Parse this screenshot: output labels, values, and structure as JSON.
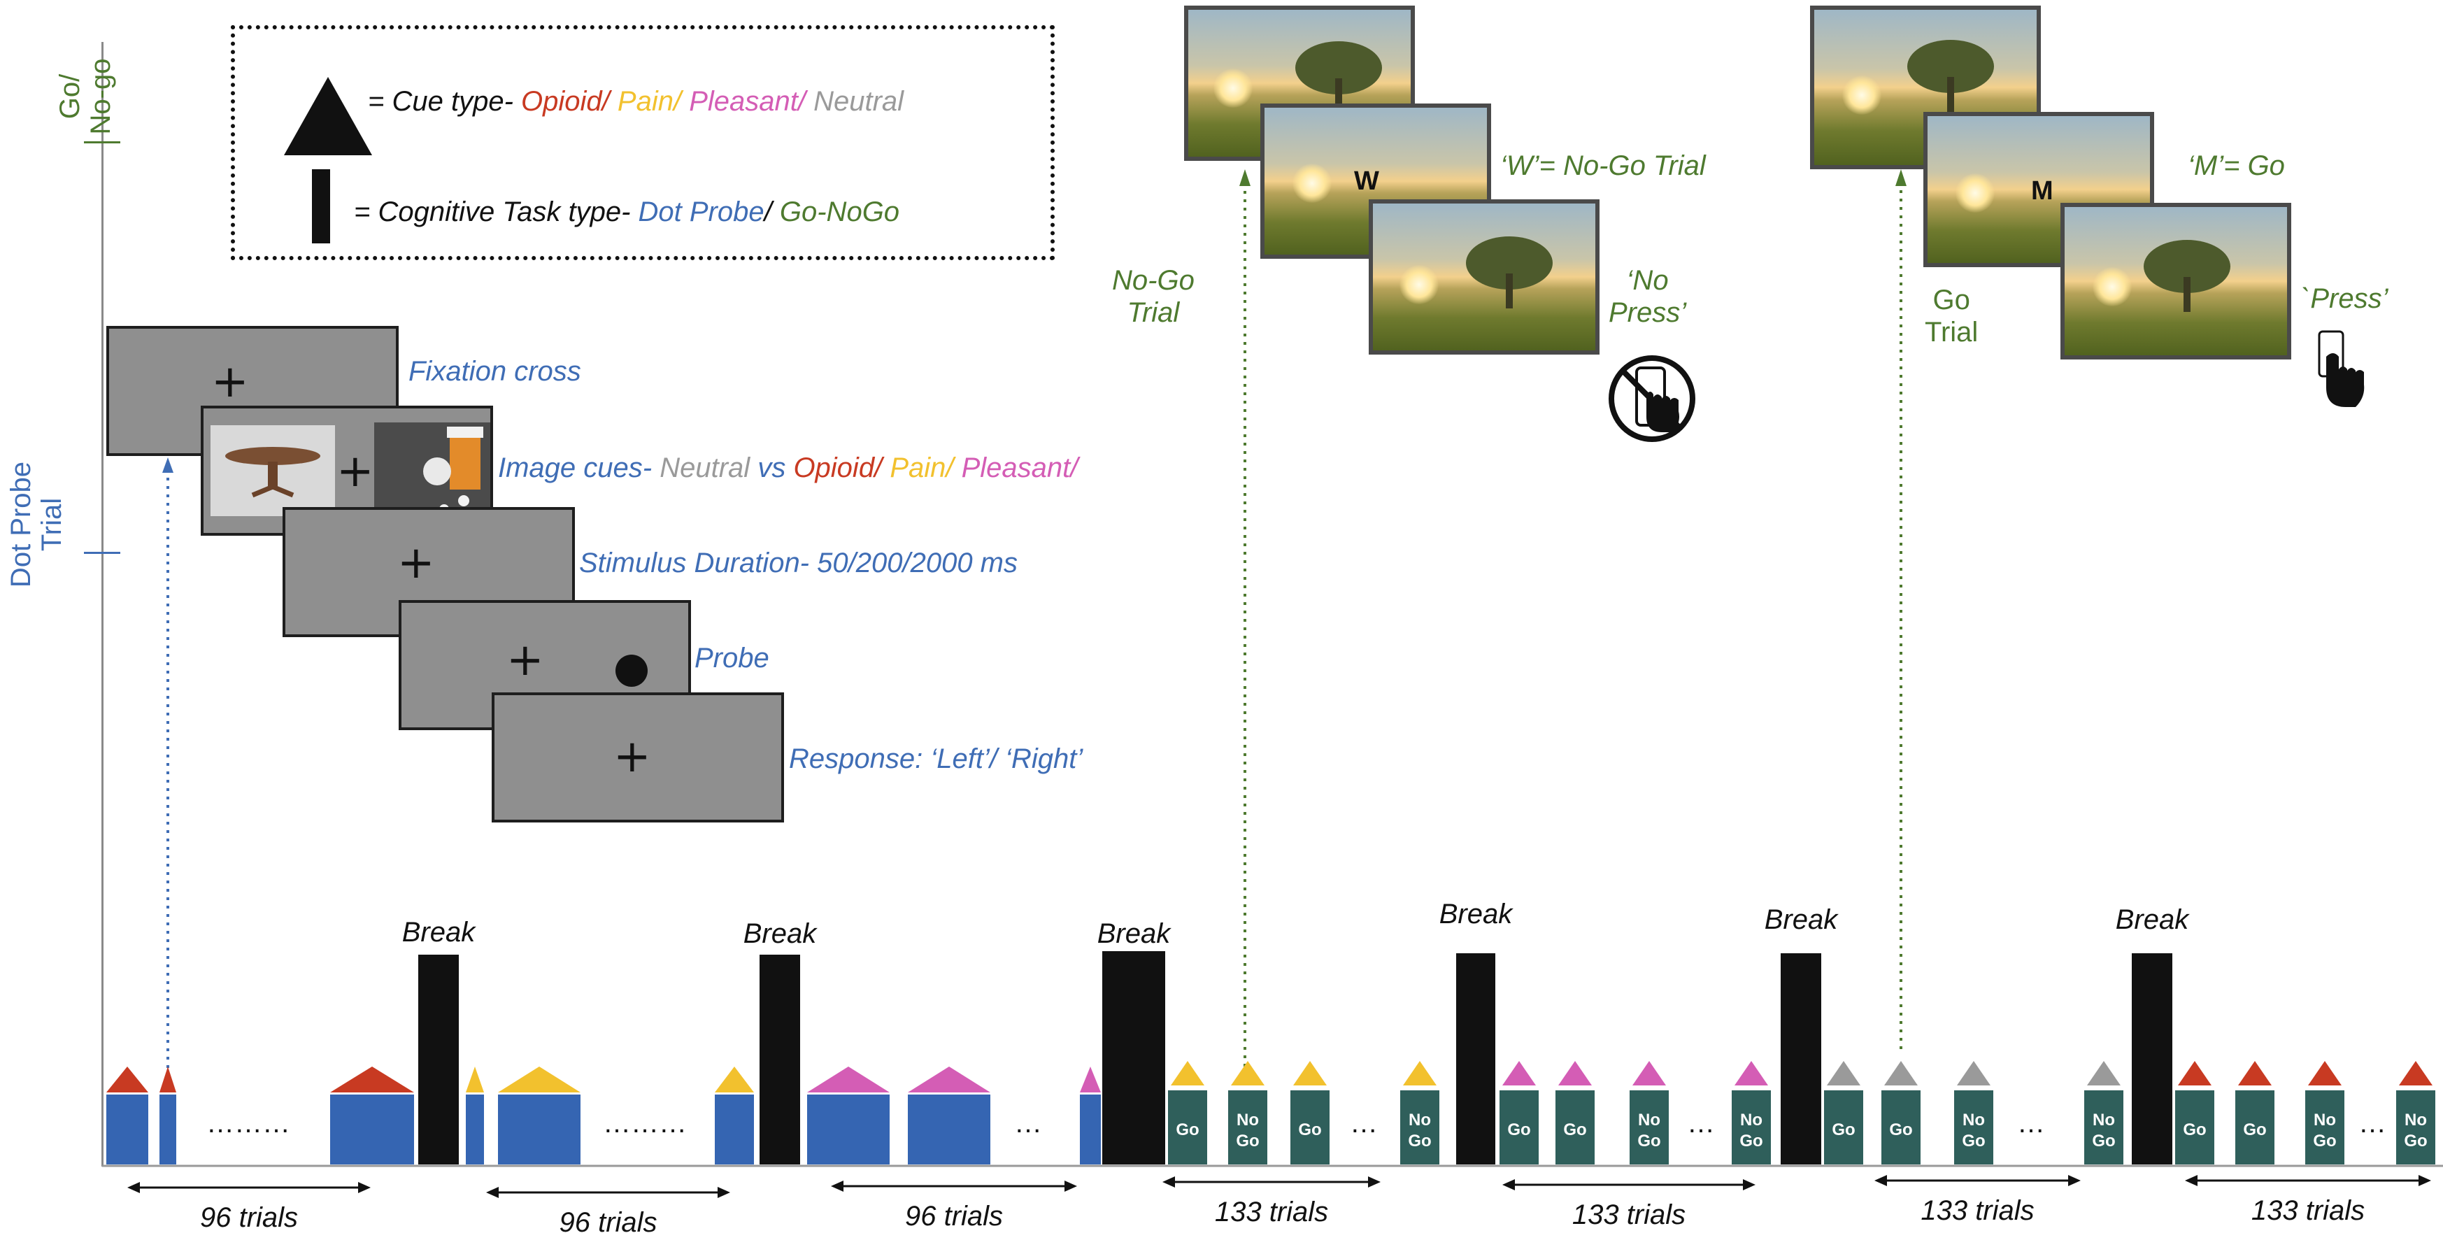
{
  "axis": {
    "go_nogo_label": [
      "Go/",
      "No-go"
    ],
    "dot_probe_label": [
      "Dot Probe",
      "Trial"
    ]
  },
  "legend": {
    "cue_prefix": "= Cue type-",
    "cue_opioid": "Opioid/",
    "cue_pain": "Pain/",
    "cue_pleasant": "Pleasant/",
    "cue_neutral": "Neutral",
    "task_prefix": "= Cognitive Task type-",
    "task_dotprobe": "Dot Probe",
    "task_slash": "/",
    "task_gonogo": "Go-NoGo"
  },
  "dot_probe": {
    "fixation": "Fixation cross",
    "image_cues_prefix": "Image cues-",
    "image_cues_neutral": "Neutral",
    "image_cues_vs": "vs",
    "image_cues_opioid": "Opioid/",
    "image_cues_pain": "Pain/",
    "image_cues_pleasant": "Pleasant/",
    "stimulus_duration": "Stimulus Duration- 50/200/2000 ms",
    "probe": "Probe",
    "response": "Response: ‘Left’/ ‘Right’"
  },
  "nogo": {
    "trial_label": [
      "No-Go",
      "Trial"
    ],
    "letter": "W",
    "letter_caption": "‘W’= No-Go Trial",
    "response_caption": [
      "‘No",
      "Press’"
    ]
  },
  "go": {
    "trial_label": [
      "Go",
      "Trial"
    ],
    "letter": "M",
    "letter_caption": "‘M’= Go",
    "response_caption": "`Press’"
  },
  "timeline": {
    "break_label": "Break",
    "go_label": "Go",
    "nogo_label": [
      "No",
      "Go"
    ],
    "ellipsis_long": "………",
    "ellipsis_short": "…",
    "blocks": [
      {
        "task": "Dot Probe",
        "cue": "Opioid",
        "trials_label": "96 trials"
      },
      {
        "task": "Dot Probe",
        "cue": "Pain",
        "trials_label": "96 trials"
      },
      {
        "task": "Dot Probe",
        "cue": "Pleasant",
        "trials_label": "96 trials"
      },
      {
        "task": "Go-NoGo",
        "cue": "Pain",
        "trials_label": "133 trials"
      },
      {
        "task": "Go-NoGo",
        "cue": "Pleasant",
        "trials_label": "133 trials"
      },
      {
        "task": "Go-NoGo",
        "cue": "Neutral",
        "trials_label": "133 trials"
      },
      {
        "task": "Go-NoGo",
        "cue": "Opioid",
        "trials_label": "133 trials"
      }
    ]
  },
  "colors": {
    "opioid": "#c83a22",
    "pain": "#f2c12e",
    "pleasant": "#d45db5",
    "neutral": "#9a9a9a",
    "dot_probe_bar": "#3565b2",
    "gonogo_bar": "#2f5f5b",
    "go_nogo_text": "#4e7a2f"
  }
}
